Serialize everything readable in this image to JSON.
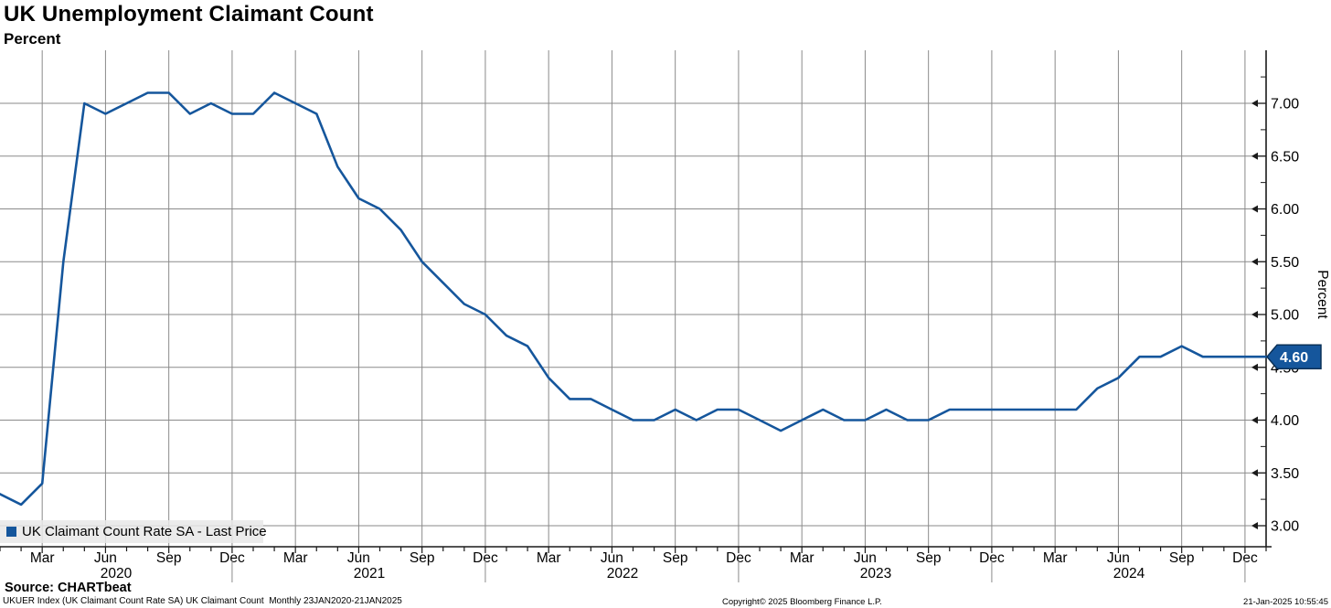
{
  "header": {
    "title": "UK Unemployment Claimant Count",
    "subtitle": "Percent"
  },
  "footer": {
    "source": "Source: CHARTbeat",
    "description": "UKUER Index (UK Claimant Count Rate SA) UK Claimant Count  Monthly 23JAN2020-21JAN2025",
    "copyright": "Copyright© 2025 Bloomberg Finance L.P.",
    "datetime": "21-Jan-2025 10:55:45"
  },
  "colors": {
    "line": "#15569C",
    "badge_bg": "#15569C",
    "badge_border": "#0A3158",
    "grid": "#8A8A8A",
    "axis": "#1A1A1A",
    "legend_bg": "#E7E7E7"
  },
  "chart_data": {
    "type": "line",
    "title": "UK Unemployment Claimant Count",
    "ylabel": "Percent",
    "frequency": "monthly",
    "x_start_month": "Jan 2020",
    "x_end_month": "Jan 2025",
    "ylim": [
      2.8,
      7.5
    ],
    "grid": true,
    "legend_position": "bottom-left",
    "y_tick_labels": [
      "3.00",
      "3.50",
      "4.00",
      "4.50",
      "5.00",
      "5.50",
      "6.00",
      "6.50",
      "7.00"
    ],
    "y_minor_tick_step": 0.25,
    "x_axis": {
      "quarter_labels": [
        "Mar",
        "Jun",
        "Sep",
        "Dec"
      ],
      "years": [
        "2020",
        "2021",
        "2022",
        "2023",
        "2024"
      ]
    },
    "last_price": {
      "value": 4.6,
      "label": "4.60"
    },
    "series": [
      {
        "name": "UK Claimant Count Rate SA - Last Price",
        "color": "#15569C",
        "values": [
          3.3,
          3.2,
          3.4,
          5.5,
          7.0,
          6.9,
          7.0,
          7.1,
          7.1,
          6.9,
          7.0,
          6.9,
          6.9,
          7.1,
          7.0,
          6.9,
          6.4,
          6.1,
          6.0,
          5.8,
          5.5,
          5.3,
          5.1,
          5.0,
          4.8,
          4.7,
          4.4,
          4.2,
          4.2,
          4.1,
          4.0,
          4.0,
          4.1,
          4.0,
          4.1,
          4.1,
          4.0,
          3.9,
          4.0,
          4.1,
          4.0,
          4.0,
          4.1,
          4.0,
          4.0,
          4.1,
          4.1,
          4.1,
          4.1,
          4.1,
          4.1,
          4.1,
          4.3,
          4.4,
          4.6,
          4.6,
          4.7,
          4.6,
          4.6,
          4.6,
          4.6
        ]
      }
    ]
  }
}
